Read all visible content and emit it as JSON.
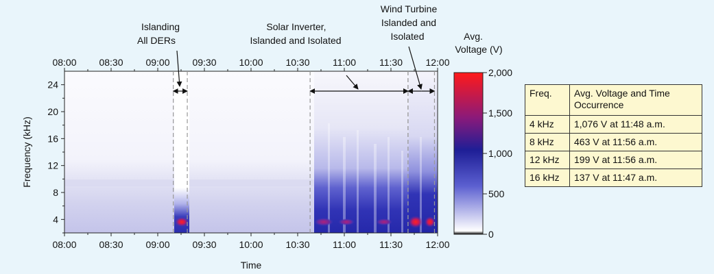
{
  "chart_data": {
    "type": "heatmap",
    "xlabel": "Time",
    "ylabel": "Frequency (kHz)",
    "x_ticks": [
      "08:00",
      "08:30",
      "09:00",
      "09:30",
      "10:00",
      "10:30",
      "11:00",
      "11:30",
      "12:00"
    ],
    "y_ticks": [
      "4",
      "8",
      "12",
      "16",
      "20",
      "24"
    ],
    "xlim": [
      "08:00",
      "12:00"
    ],
    "ylim": [
      2,
      26
    ],
    "colorbar": {
      "title_line1": "Avg.",
      "title_line2": "Voltage (V)",
      "ticks": [
        "2,000",
        "1,500",
        "1,000",
        "500",
        "0"
      ],
      "range": [
        0,
        2000
      ],
      "colors": [
        "#000000",
        "#ffffff",
        "#5b5fd0",
        "#1e1e96",
        "#8a1a7a",
        "#ff1a1a"
      ]
    },
    "events": [
      {
        "line1": "Islanding",
        "line2": "All DERs",
        "start": "09:10",
        "end": "09:19"
      },
      {
        "line1": "Solar Inverter,",
        "line2": "Islanded and Isolated",
        "start": "10:38",
        "end": "11:41"
      },
      {
        "line1": "Wind Turbine",
        "line2": "Islanded and",
        "line3": "Isolated",
        "start": "11:41",
        "end": "11:58"
      }
    ],
    "table": {
      "headers": [
        "Freq.",
        "Avg. Voltage and Time Occurrence"
      ],
      "rows": [
        [
          "4 kHz",
          "1,076 V at 11:48 a.m."
        ],
        [
          "8 kHz",
          "463 V at 11:56 a.m."
        ],
        [
          "12 kHz",
          "199 V at 11:56 a.m."
        ],
        [
          "16 kHz",
          "137 V at 11:47 a.m."
        ]
      ]
    }
  }
}
